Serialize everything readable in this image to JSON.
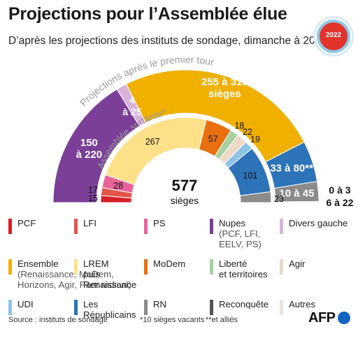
{
  "header": {
    "title": "Projections pour l’Assemblée élue",
    "subtitle": "D’après les projections des instituts de sondage, dimanche à 20h35",
    "badge": "2022"
  },
  "chart_data": {
    "type": "parliament-arc",
    "outer": {
      "label": "Projections après le premier tour",
      "segments": [
        {
          "name": "Nupes",
          "label": "150\nà 220",
          "range": [
            150,
            220
          ],
          "color": "#7b3f98"
        },
        {
          "name": "Divers gauche",
          "label": "4\nà 25",
          "range": [
            4,
            25
          ],
          "color": "#d9b3dc"
        },
        {
          "name": "Ensemble",
          "label": "255 à 310\nsièges",
          "range": [
            255,
            310
          ],
          "color": "#f0b000"
        },
        {
          "name": "Les Républicains",
          "label": "33 à 80**",
          "range": [
            33,
            80
          ],
          "color": "#2c73b8"
        },
        {
          "name": "RN",
          "label": "10 à 45",
          "range": [
            10,
            45
          ],
          "color": "#8b8b8b"
        },
        {
          "name": "Autres",
          "label": "",
          "range": [
            0,
            3
          ],
          "color": "#e9e6df"
        }
      ],
      "outside_labels": [
        "0 à 3",
        "6 à 22"
      ]
    },
    "inner": {
      "label": "Assemblée sortante*",
      "total": "577",
      "total_label": "sièges",
      "segments": [
        {
          "name": "PCF",
          "value": 15,
          "color": "#d41f26"
        },
        {
          "name": "LFI",
          "value": 17,
          "color": "#e3544a"
        },
        {
          "name": "PS",
          "value": 28,
          "color": "#e8629a"
        },
        {
          "name": "LREM puis Renaissance",
          "value": 267,
          "color": "#fde18a"
        },
        {
          "name": "MoDem",
          "value": 57,
          "color": "#e8700f"
        },
        {
          "name": "Liberté et territoires",
          "value": 18,
          "color": "#a6d1a2"
        },
        {
          "name": "Agir",
          "value": 22,
          "color": "#ecd9c6"
        },
        {
          "name": "UDI",
          "value": 19,
          "color": "#8fc3e6"
        },
        {
          "name": "Les Républicains",
          "value": 101,
          "color": "#2c73b8"
        },
        {
          "name": "RN",
          "value": 23,
          "color": "#8b8b8b"
        }
      ]
    }
  },
  "legend": [
    {
      "color": "#d41f26",
      "label": "PCF",
      "sub": ""
    },
    {
      "color": "#e3544a",
      "label": "LFI",
      "sub": ""
    },
    {
      "color": "#e8629a",
      "label": "PS",
      "sub": ""
    },
    {
      "color": "#7b3f98",
      "label": "Nupes",
      "sub": "(PCF, LFI,\nEELV, PS)"
    },
    {
      "color": "#d9b3dc",
      "label": "Divers gauche",
      "sub": ""
    },
    {
      "color": "#f0b000",
      "label": "Ensemble",
      "sub": "(Renaissance, MoDem,\nHorizons, Agir, Parti radical)"
    },
    {
      "color": "#fde18a",
      "label": "LREM\npuis\nRenaissance",
      "sub": ""
    },
    {
      "color": "#e8700f",
      "label": "MoDem",
      "sub": ""
    },
    {
      "color": "#a6d1a2",
      "label": "Liberté\net territoires",
      "sub": ""
    },
    {
      "color": "#ecd9c6",
      "label": "Agir",
      "sub": ""
    },
    {
      "color": "#8fc3e6",
      "label": "UDI",
      "sub": ""
    },
    {
      "color": "#2c73b8",
      "label": "Les\nRépublicains",
      "sub": ""
    },
    {
      "color": "#8b8b8b",
      "label": "RN",
      "sub": ""
    },
    {
      "color": "#555555",
      "label": "Reconquête",
      "sub": ""
    },
    {
      "color": "#e9e6df",
      "label": "Autres",
      "sub": ""
    }
  ],
  "footer": {
    "source": "Source : instituts de sondage",
    "note1": "*10 sièges vacants",
    "note2": "**et alliés",
    "logo": "AFP"
  }
}
